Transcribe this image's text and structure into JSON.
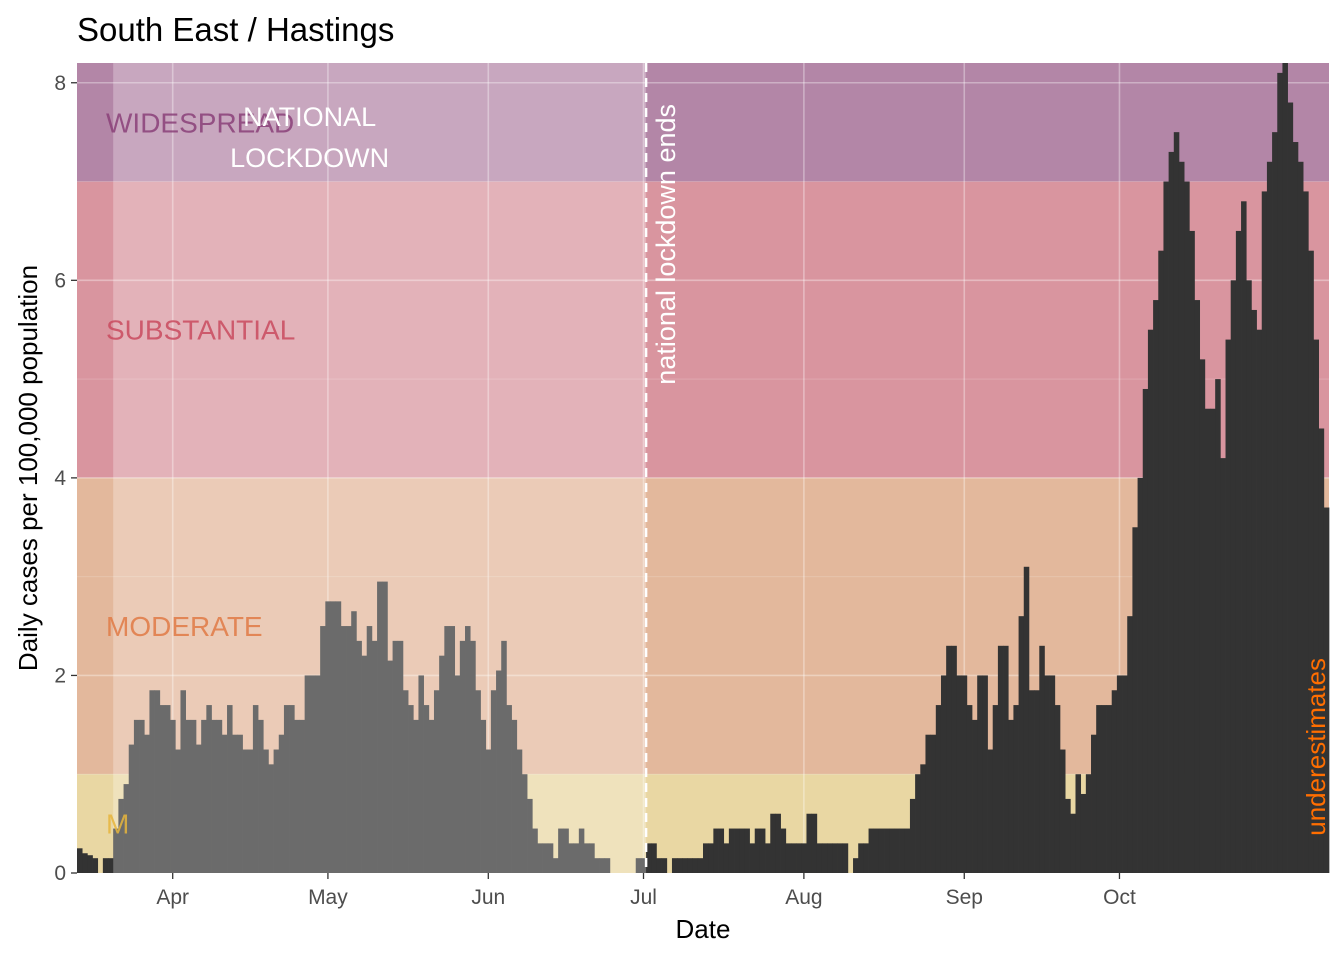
{
  "chart_data": {
    "type": "bar",
    "title": "South East / Hastings",
    "xlabel": "Date",
    "ylabel": "Daily cases per 100,000 population",
    "ylim": [
      0,
      8.2
    ],
    "y_ticks": [
      0,
      2,
      4,
      6,
      8
    ],
    "x_start_date": "2020-03-15",
    "x_tick_labels": [
      {
        "label": "Apr",
        "day": 18
      },
      {
        "label": "May",
        "day": 48
      },
      {
        "label": "Jun",
        "day": 79
      },
      {
        "label": "Jul",
        "day": 109
      },
      {
        "label": "Aug",
        "day": 140
      },
      {
        "label": "Sep",
        "day": 171
      },
      {
        "label": "Oct",
        "day": 201
      }
    ],
    "grid": true,
    "bands": [
      {
        "label": "WIDESPREAD",
        "from": 7,
        "to": 8.2,
        "color": "#9b5b8a",
        "label_color": "#8a3f78"
      },
      {
        "label": "SUBSTANTIAL",
        "from": 4,
        "to": 7,
        "color": "#d1707f",
        "label_color": "#c94a5e"
      },
      {
        "label": "MODERATE",
        "from": 1,
        "to": 4,
        "color": "#e0a27a",
        "label_color": "#e07a45"
      },
      {
        "label": "M",
        "from": 0,
        "to": 1,
        "color": "#e8cf84",
        "label_color": "#e6b53c"
      }
    ],
    "lockdown": {
      "label_line1": "NATIONAL",
      "label_line2": "LOCKDOWN",
      "start_day": 7,
      "end_day": 110,
      "color": "#ffffff"
    },
    "annotations": {
      "lockdown_ends": "national lockdown ends",
      "underestimates": "underestimates"
    },
    "values": [
      0.25,
      0.2,
      0.18,
      0.15,
      0,
      0.15,
      0.15,
      0.45,
      0.75,
      0.9,
      1.3,
      1.55,
      1.55,
      1.4,
      1.85,
      1.85,
      1.7,
      1.7,
      1.55,
      1.25,
      1.85,
      1.55,
      1.55,
      1.3,
      1.55,
      1.7,
      1.55,
      1.55,
      1.4,
      1.7,
      1.4,
      1.4,
      1.25,
      1.25,
      1.7,
      1.55,
      1.25,
      1.1,
      1.25,
      1.4,
      1.7,
      1.7,
      1.55,
      1.55,
      2.0,
      2.0,
      2.0,
      2.5,
      2.75,
      2.75,
      2.75,
      2.5,
      2.5,
      2.65,
      2.35,
      2.2,
      2.5,
      2.35,
      2.95,
      2.95,
      2.15,
      2.35,
      2.35,
      1.85,
      1.7,
      1.55,
      2.0,
      1.7,
      1.55,
      1.85,
      2.2,
      2.5,
      2.5,
      2.0,
      2.35,
      2.5,
      2.35,
      1.85,
      1.55,
      1.25,
      1.85,
      2.05,
      2.35,
      1.7,
      1.55,
      1.25,
      1.0,
      0.75,
      0.45,
      0.3,
      0.3,
      0.3,
      0.15,
      0.45,
      0.45,
      0.3,
      0.3,
      0.45,
      0.3,
      0.3,
      0.15,
      0.15,
      0.15,
      0,
      0,
      0,
      0,
      0,
      0.15,
      0.15,
      0.3,
      0.3,
      0.15,
      0.15,
      0,
      0.15,
      0.15,
      0.15,
      0.15,
      0.15,
      0.15,
      0.3,
      0.3,
      0.45,
      0.45,
      0.3,
      0.45,
      0.45,
      0.45,
      0.45,
      0.3,
      0.45,
      0.45,
      0.3,
      0.6,
      0.6,
      0.45,
      0.3,
      0.3,
      0.3,
      0.3,
      0.6,
      0.6,
      0.3,
      0.3,
      0.3,
      0.3,
      0.3,
      0.3,
      0,
      0.15,
      0.3,
      0.3,
      0.45,
      0.45,
      0.45,
      0.45,
      0.45,
      0.45,
      0.45,
      0.45,
      0.75,
      1.0,
      1.1,
      1.4,
      1.4,
      1.7,
      2.0,
      2.3,
      2.3,
      2.0,
      2.0,
      1.7,
      1.55,
      2.0,
      2.0,
      1.25,
      1.7,
      2.3,
      2.3,
      1.55,
      1.7,
      2.6,
      3.1,
      1.85,
      1.85,
      2.3,
      2.0,
      2.0,
      1.7,
      1.25,
      0.75,
      0.6,
      1.0,
      0.8,
      1.0,
      1.4,
      1.7,
      1.7,
      1.7,
      1.85,
      2.0,
      2.0,
      2.6,
      3.5,
      4.0,
      4.9,
      5.5,
      5.8,
      6.3,
      7.0,
      7.3,
      7.5,
      7.2,
      7.0,
      6.5,
      5.8,
      5.2,
      4.7,
      4.7,
      5.0,
      4.2,
      5.4,
      6.0,
      6.5,
      6.8,
      6.0,
      5.7,
      5.5,
      6.9,
      7.2,
      7.5,
      8.1,
      8.2,
      7.8,
      7.4,
      7.2,
      6.9,
      6.3,
      5.4,
      4.5,
      3.7
    ]
  }
}
